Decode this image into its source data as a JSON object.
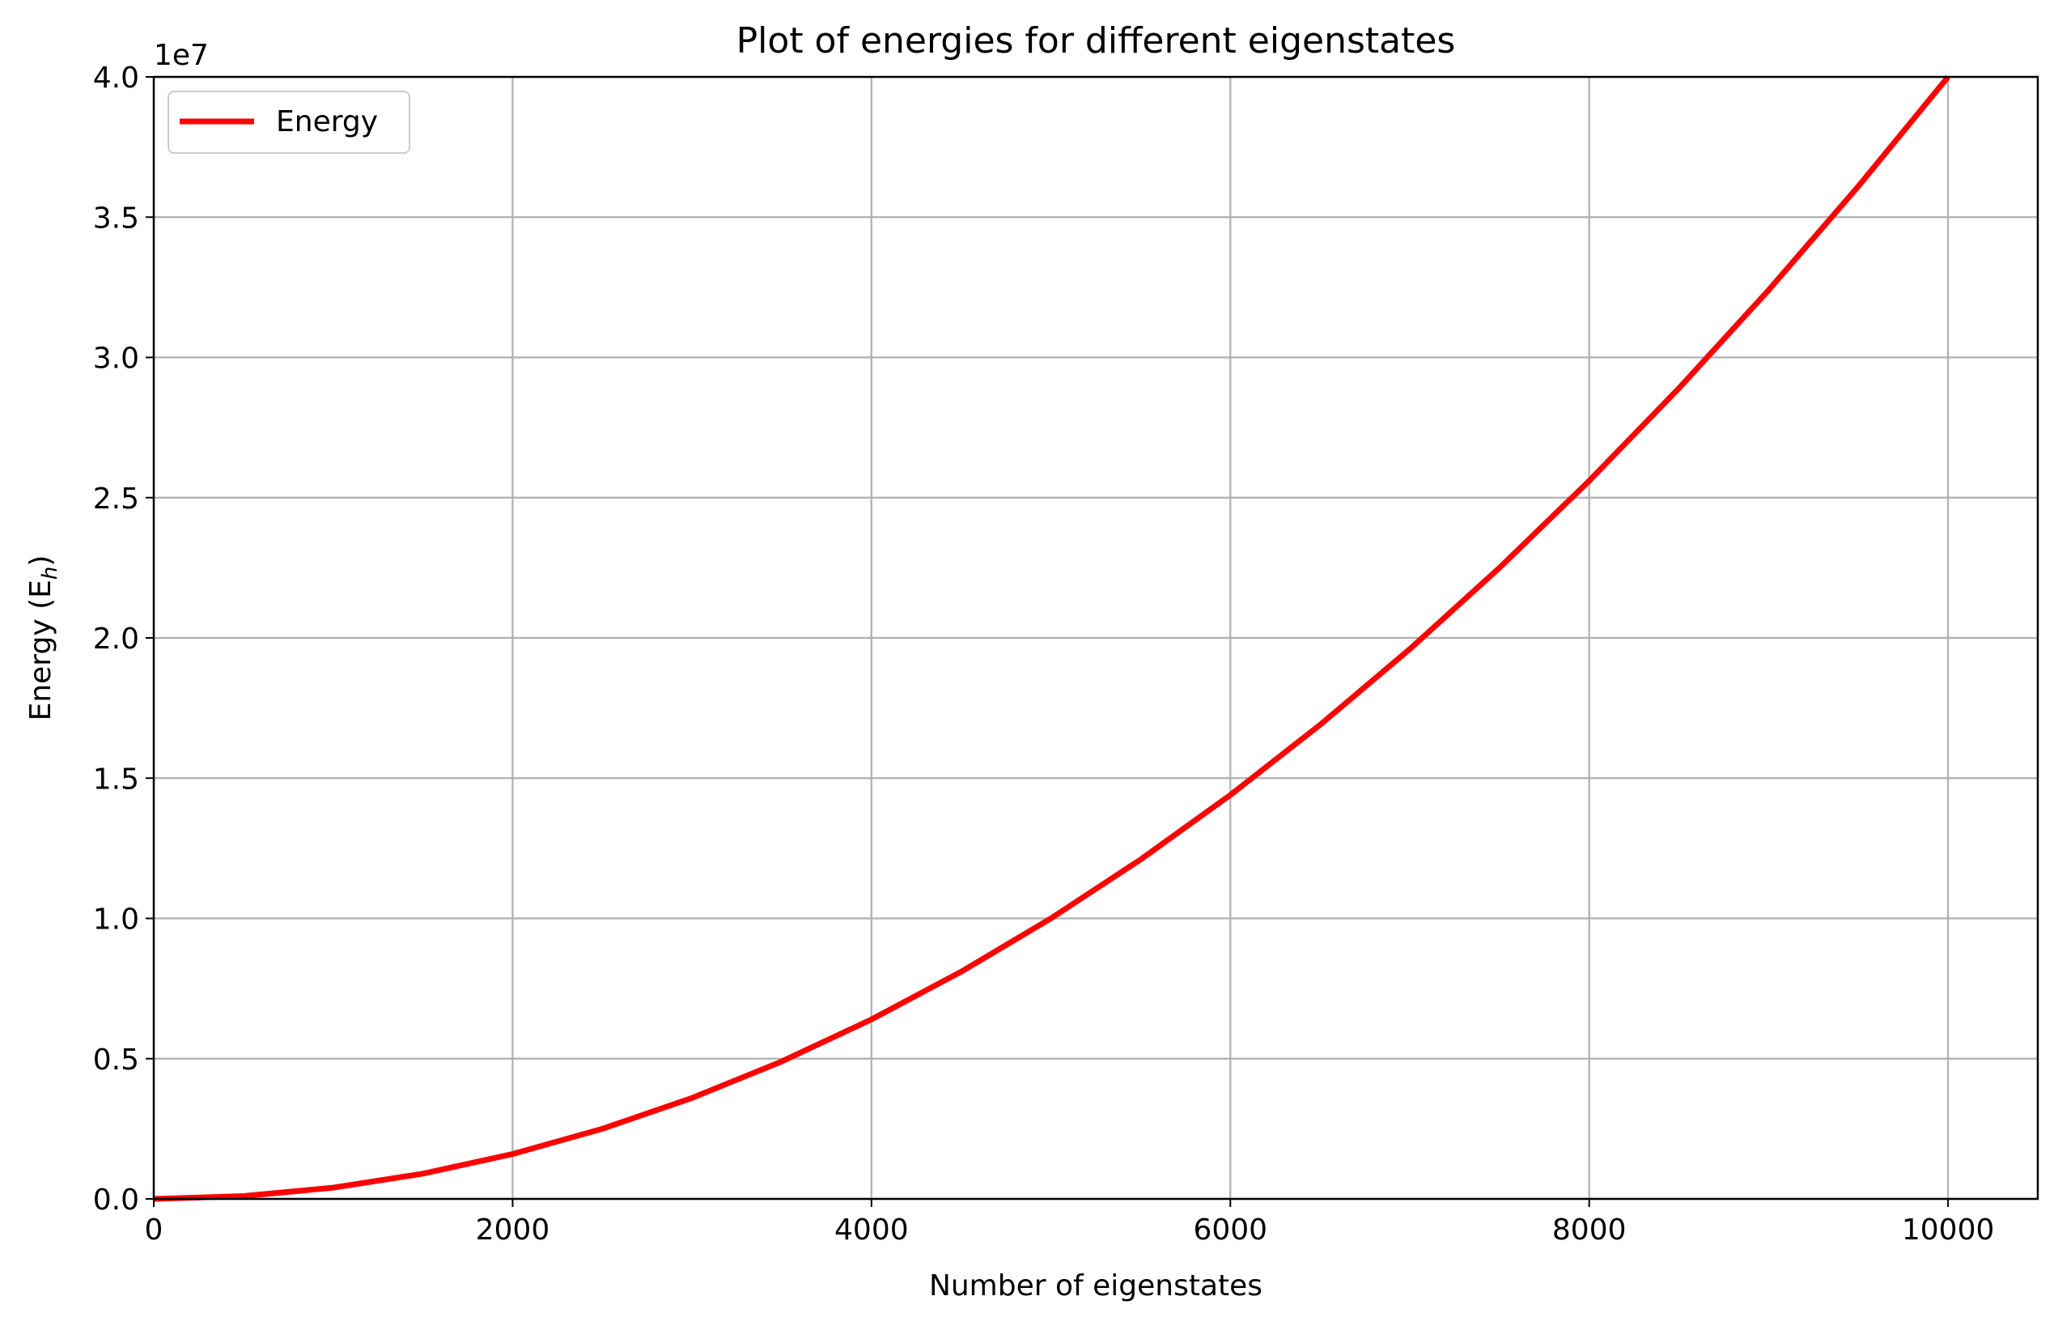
{
  "chart_data": {
    "type": "line",
    "title": "Plot of energies for different eigenstates",
    "xlabel": "Number of eigenstates",
    "ylabel_main": "Energy (E",
    "ylabel_sub": "h",
    "ylabel_close": ")",
    "y_offset_label": "1e7",
    "xlim": [
      0,
      10500
    ],
    "ylim": [
      0,
      4.0
    ],
    "y_multiplier": 10000000,
    "x_ticks": [
      0,
      2000,
      4000,
      6000,
      8000,
      10000
    ],
    "x_tick_labels": [
      "0",
      "2000",
      "4000",
      "6000",
      "8000",
      "10000"
    ],
    "y_ticks": [
      0,
      0.5,
      1.0,
      1.5,
      2.0,
      2.5,
      3.0,
      3.5,
      4.0
    ],
    "y_tick_labels": [
      "0.0",
      "0.5",
      "1.0",
      "1.5",
      "2.0",
      "2.5",
      "3.0",
      "3.5",
      "4.0"
    ],
    "grid": true,
    "legend_position": "top-left",
    "series": [
      {
        "name": "Energy",
        "color": "#ff0000",
        "x": [
          0,
          500,
          1000,
          1500,
          2000,
          2500,
          3000,
          3500,
          4000,
          4500,
          5000,
          5500,
          6000,
          6500,
          7000,
          7500,
          8000,
          8500,
          9000,
          9500,
          10000
        ],
        "y": [
          0,
          0.01,
          0.04,
          0.09,
          0.16,
          0.25,
          0.36,
          0.49,
          0.64,
          0.81,
          1.0,
          1.21,
          1.44,
          1.69,
          1.96,
          2.25,
          2.56,
          2.89,
          3.24,
          3.61,
          4.0
        ]
      }
    ]
  }
}
